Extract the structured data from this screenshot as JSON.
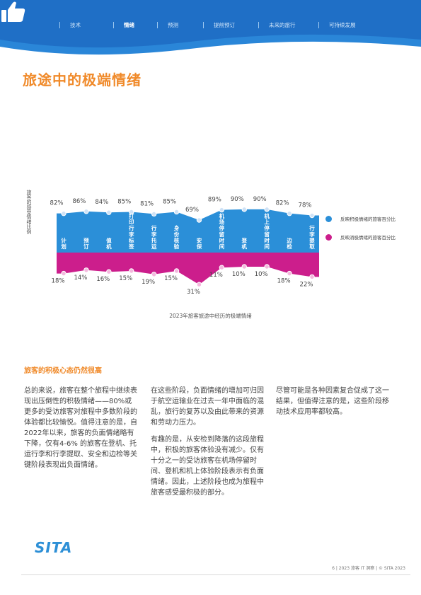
{
  "header": {
    "nav": [
      {
        "label": "技术",
        "active": false
      },
      {
        "label": "情绪",
        "active": true
      },
      {
        "label": "预测",
        "active": false
      },
      {
        "label": "提前预订",
        "active": false
      },
      {
        "label": "未来的旅行",
        "active": false
      },
      {
        "label": "可持续发展",
        "active": false
      }
    ],
    "colors": {
      "band": "#1f6fc6",
      "band_light": "#2a86d8"
    }
  },
  "page_title": "旅途中的极端情绪",
  "chart_data": {
    "type": "area",
    "title": "2023年旅客旅途中经历的极端情绪",
    "ylabel": "旅客的感受情绪比例",
    "categories": [
      "计划",
      "预订",
      "值机",
      "打印行李标签",
      "行李托运",
      "身份核验",
      "安保",
      "机场停留时间",
      "登机",
      "机上停留时间",
      "边检",
      "行李提取"
    ],
    "series": [
      {
        "name": "反映积极情绪的旅客百分比",
        "color": "#2b8fd8",
        "values": [
          82,
          86,
          84,
          85,
          81,
          85,
          69,
          89,
          90,
          90,
          82,
          78
        ],
        "labels": [
          "82%",
          "86%",
          "84%",
          "85%",
          "81%",
          "85%",
          "69%",
          "89%",
          "90%",
          "90%",
          "82%",
          "78%"
        ]
      },
      {
        "name": "反映消极情绪的旅客百分比",
        "color": "#cc1e8c",
        "values": [
          18,
          14,
          16,
          15,
          19,
          15,
          31,
          11,
          10,
          10,
          18,
          22
        ],
        "labels": [
          "18%",
          "14%",
          "16%",
          "15%",
          "19%",
          "15%",
          "31%",
          "11%",
          "10%",
          "10%",
          "18%",
          "22%"
        ]
      }
    ],
    "grid": false,
    "legend_position": "right"
  },
  "section_heading": "旅客的积极心态仍然很高",
  "columns": [
    [
      "总的来说，旅客在整个旅程中继续表现出压倒性的积极情绪——80%或更多的受访旅客对旅程中多数阶段的体验都比较愉悦。值得注意的是，自2022年以来，旅客的负面情绪略有下降，仅有4-6% 的旅客在登机、托运行李和行李提取、安全和边检等关键阶段表现出负面情绪。"
    ],
    [
      "在这些阶段，负面情绪的增加可归因于航空运输业在过去一年中面临的混乱，旅行的复苏以及由此带来的资源和劳动力压力。",
      "有趣的是，从安检到降落的这段旅程中，积极的旅客体验没有减少。仅有十分之一的受访旅客在机场停留时间、登机和机上体验阶段表示有负面情绪。因此，上述阶段也成为旅程中旅客感受最积极的部分。"
    ],
    [
      "尽管可能是各种因素复合促成了这一结果，但值得注意的是，这些阶段移动技术应用率都较高。"
    ]
  ],
  "logo": "SITA",
  "footer": "6 | 2023 旅客 IT 洞察 | © SITA 2023"
}
